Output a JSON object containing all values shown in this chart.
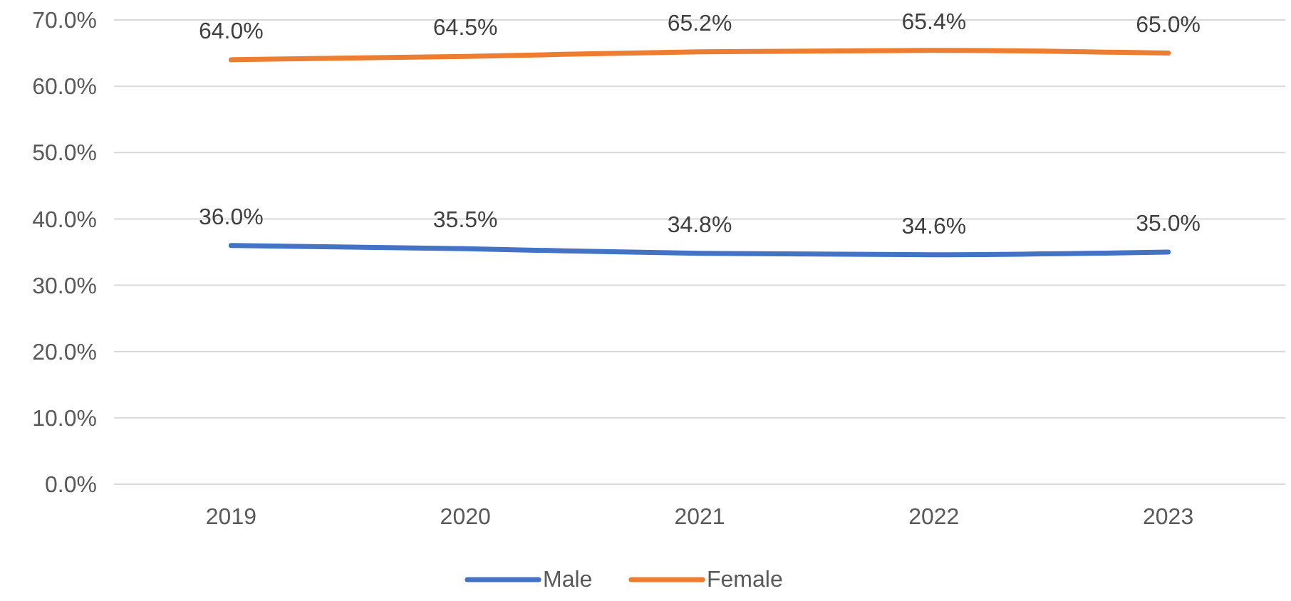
{
  "chart_data": {
    "type": "line",
    "categories": [
      "2019",
      "2020",
      "2021",
      "2022",
      "2023"
    ],
    "series": [
      {
        "name": "Male",
        "color": "#4472c4",
        "values": [
          36.0,
          35.5,
          34.8,
          34.6,
          35.0
        ],
        "value_labels": [
          "36.0%",
          "35.5%",
          "34.8%",
          "34.6%",
          "35.0%"
        ]
      },
      {
        "name": "Female",
        "color": "#ed7d31",
        "values": [
          64.0,
          64.5,
          65.2,
          65.4,
          65.0
        ],
        "value_labels": [
          "64.0%",
          "64.5%",
          "65.2%",
          "65.4%",
          "65.0%"
        ]
      }
    ],
    "ylim": [
      0,
      70
    ],
    "yticks": [
      {
        "value": 0,
        "label": "0.0%"
      },
      {
        "value": 10,
        "label": "10.0%"
      },
      {
        "value": 20,
        "label": "20.0%"
      },
      {
        "value": 30,
        "label": "30.0%"
      },
      {
        "value": 40,
        "label": "40.0%"
      },
      {
        "value": 50,
        "label": "50.0%"
      },
      {
        "value": 60,
        "label": "60.0%"
      },
      {
        "value": 70,
        "label": "70.0%"
      }
    ],
    "grid": "y",
    "legend": "bottom",
    "marker": "none",
    "line_style": "solid"
  }
}
